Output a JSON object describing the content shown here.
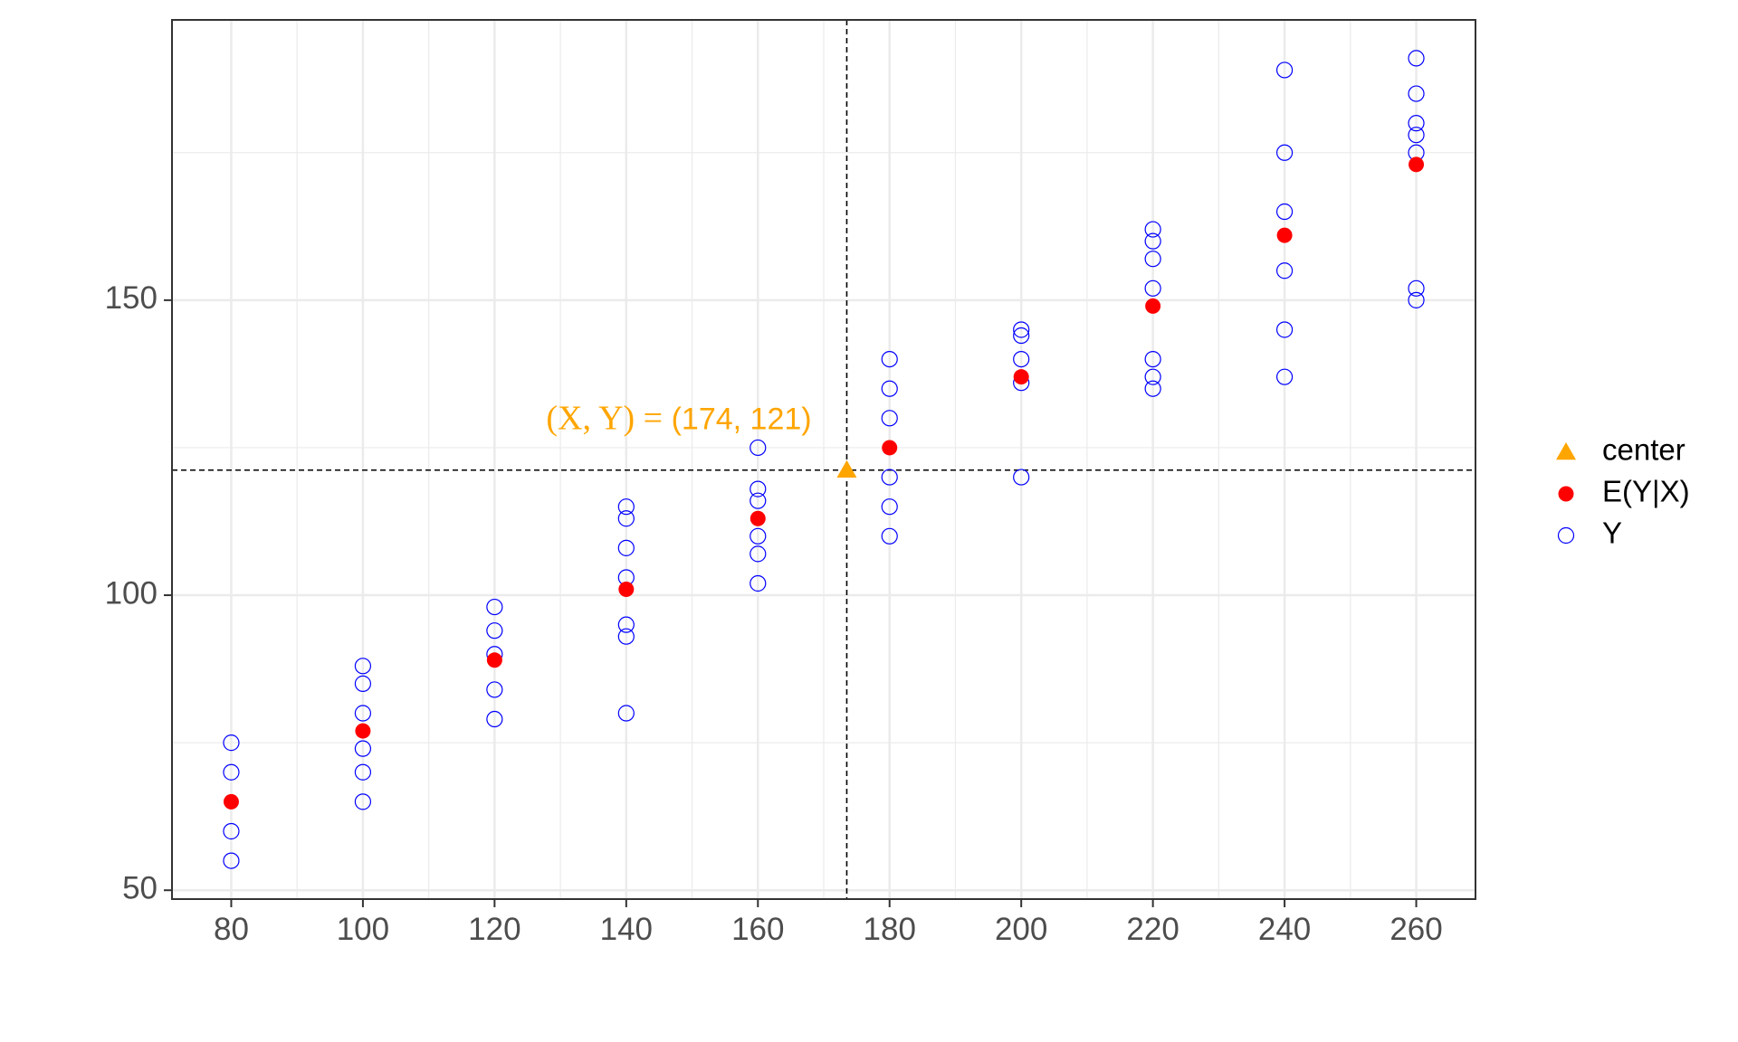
{
  "chart_data": {
    "type": "scatter",
    "title": "",
    "xlabel": "",
    "ylabel": "",
    "xlim": [
      71,
      269
    ],
    "ylim": [
      48.5,
      197.5
    ],
    "x_ticks": [
      80,
      100,
      120,
      140,
      160,
      180,
      200,
      220,
      240,
      260
    ],
    "y_ticks": [
      50,
      100,
      150
    ],
    "grid": true,
    "legend_position": "right",
    "colors": {
      "center": "#FFA500",
      "conditional_mean": "#FF0000",
      "observations": "#0000FF",
      "axis_text": "#4d4d4d",
      "grid": "#ebebeb",
      "reference_line": "#000000"
    },
    "series": [
      {
        "name": "Y",
        "marker": "open-circle",
        "points": [
          [
            80,
            55
          ],
          [
            80,
            60
          ],
          [
            80,
            70
          ],
          [
            80,
            75
          ],
          [
            100,
            65
          ],
          [
            100,
            70
          ],
          [
            100,
            74
          ],
          [
            100,
            80
          ],
          [
            100,
            85
          ],
          [
            100,
            88
          ],
          [
            120,
            79
          ],
          [
            120,
            84
          ],
          [
            120,
            90
          ],
          [
            120,
            94
          ],
          [
            120,
            98
          ],
          [
            140,
            80
          ],
          [
            140,
            93
          ],
          [
            140,
            95
          ],
          [
            140,
            103
          ],
          [
            140,
            108
          ],
          [
            140,
            113
          ],
          [
            140,
            115
          ],
          [
            160,
            102
          ],
          [
            160,
            107
          ],
          [
            160,
            110
          ],
          [
            160,
            116
          ],
          [
            160,
            118
          ],
          [
            160,
            125
          ],
          [
            180,
            110
          ],
          [
            180,
            115
          ],
          [
            180,
            120
          ],
          [
            180,
            130
          ],
          [
            180,
            135
          ],
          [
            180,
            140
          ],
          [
            200,
            120
          ],
          [
            200,
            136
          ],
          [
            200,
            140
          ],
          [
            200,
            144
          ],
          [
            200,
            145
          ],
          [
            220,
            135
          ],
          [
            220,
            137
          ],
          [
            220,
            140
          ],
          [
            220,
            152
          ],
          [
            220,
            157
          ],
          [
            220,
            160
          ],
          [
            220,
            162
          ],
          [
            240,
            137
          ],
          [
            240,
            145
          ],
          [
            240,
            155
          ],
          [
            240,
            165
          ],
          [
            240,
            175
          ],
          [
            240,
            189
          ],
          [
            260,
            150
          ],
          [
            260,
            152
          ],
          [
            260,
            175
          ],
          [
            260,
            178
          ],
          [
            260,
            180
          ],
          [
            260,
            185
          ],
          [
            260,
            191
          ]
        ]
      },
      {
        "name": "E(Y|X)",
        "marker": "filled-circle",
        "points": [
          [
            80,
            65
          ],
          [
            100,
            77
          ],
          [
            120,
            89
          ],
          [
            140,
            101
          ],
          [
            160,
            113
          ],
          [
            180,
            125
          ],
          [
            200,
            137
          ],
          [
            220,
            149
          ],
          [
            240,
            161
          ],
          [
            260,
            173
          ]
        ]
      },
      {
        "name": "center",
        "marker": "filled-triangle",
        "points": [
          [
            173.5,
            121.2
          ]
        ]
      }
    ],
    "reference_lines": {
      "vertical_x": 173.5,
      "horizontal_y": 121.2
    },
    "annotation": {
      "text_prefix": "(X, Y) = ",
      "text_value": "(174, 121)",
      "anchor": [
        148,
        129.5
      ]
    },
    "legend": [
      {
        "label": "center",
        "marker": "filled-triangle"
      },
      {
        "label": "E(Y|X)",
        "marker": "filled-circle"
      },
      {
        "label": "Y",
        "marker": "open-circle"
      }
    ]
  }
}
